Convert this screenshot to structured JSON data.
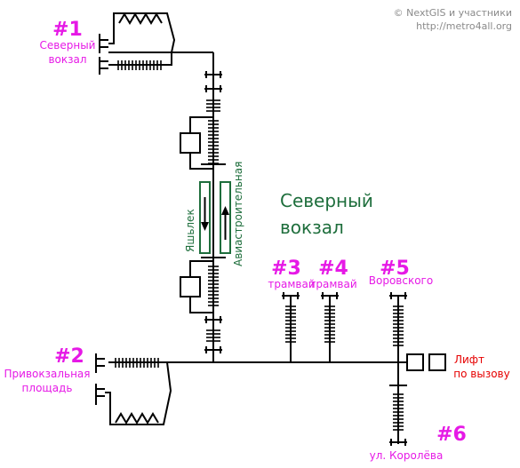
{
  "copyright": {
    "line1": "© NextGIS и участники",
    "line2": "http://metro4all.org"
  },
  "station": {
    "name_line1": "Северный",
    "name_line2": "вокзал",
    "color": "#1e6e3c"
  },
  "platforms": {
    "left": "Яшьлек",
    "right": "Авиастроительная"
  },
  "exits": [
    {
      "id": "exit-1",
      "number": "#1",
      "line1": "Северный",
      "line2": "вокзал"
    },
    {
      "id": "exit-2",
      "number": "#2",
      "line1": "Привокзальная",
      "line2": "площадь"
    },
    {
      "id": "exit-3",
      "number": "#3",
      "line1": "трамвай"
    },
    {
      "id": "exit-4",
      "number": "#4",
      "line1": "трамвай"
    },
    {
      "id": "exit-5",
      "number": "#5",
      "line1": "Воровского"
    },
    {
      "id": "exit-6",
      "number": "#6",
      "line1": "ул. Королёва"
    }
  ],
  "lift": {
    "line1": "Лифт",
    "line2": "по вызову",
    "color": "#e60000"
  },
  "colors": {
    "exit_label": "#e619e6",
    "route": "#000000"
  }
}
